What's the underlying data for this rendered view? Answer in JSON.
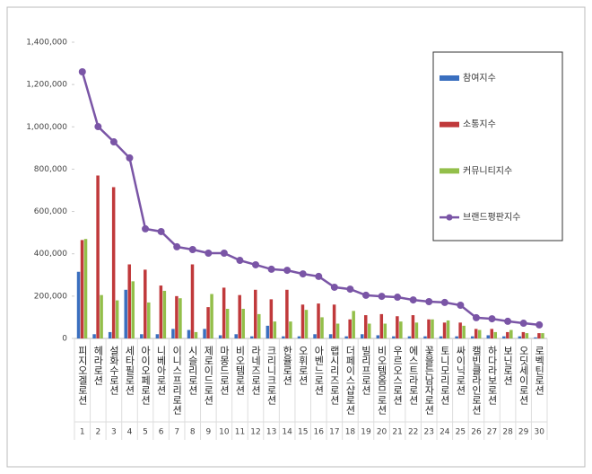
{
  "chart_data": {
    "type": "bar-line",
    "categories": [
      "피지오겔로션",
      "헤라로션",
      "설화수로션",
      "세타필로션",
      "아이오페로션",
      "니베아로션",
      "이니스프리로션",
      "시슬리로션",
      "제로이드로션",
      "마몽드로션",
      "비오템로션",
      "라네즈로션",
      "크리니크로션",
      "한율로션",
      "오휘로션",
      "아벤느로션",
      "랩시리즈로션",
      "더페이스샵로션",
      "빌리프로션",
      "비오템옴므로션",
      "우르오스로션",
      "에스트라로션",
      "꽃을든남자로션",
      "토니모리로션",
      "싸이닉로션",
      "캘빈클라인로션",
      "하다라보로션",
      "보닌로션",
      "오딧세이로션",
      "로벡틴로션"
    ],
    "ranks": [
      1,
      2,
      3,
      4,
      5,
      6,
      7,
      8,
      9,
      10,
      11,
      12,
      13,
      14,
      15,
      16,
      17,
      18,
      19,
      20,
      21,
      22,
      23,
      24,
      25,
      26,
      27,
      28,
      29,
      30
    ],
    "series": [
      {
        "name": "참여지수",
        "color": "#3a6fbf",
        "kind": "bar",
        "values": [
          315000,
          20000,
          30000,
          230000,
          20000,
          20000,
          45000,
          40000,
          45000,
          15000,
          20000,
          10000,
          60000,
          10000,
          10000,
          20000,
          20000,
          10000,
          20000,
          15000,
          10000,
          10000,
          10000,
          10000,
          10000,
          10000,
          15000,
          10000,
          10000,
          5000
        ]
      },
      {
        "name": "소통지수",
        "color": "#c0393b",
        "kind": "bar",
        "values": [
          465000,
          770000,
          715000,
          350000,
          325000,
          250000,
          200000,
          350000,
          148000,
          240000,
          205000,
          230000,
          185000,
          230000,
          160000,
          165000,
          160000,
          90000,
          110000,
          115000,
          105000,
          110000,
          90000,
          75000,
          75000,
          45000,
          45000,
          30000,
          30000,
          25000
        ]
      },
      {
        "name": "커뮤니티지수",
        "color": "#93bf4a",
        "kind": "bar",
        "values": [
          470000,
          205000,
          180000,
          270000,
          170000,
          225000,
          190000,
          30000,
          210000,
          140000,
          140000,
          115000,
          80000,
          80000,
          135000,
          100000,
          70000,
          130000,
          70000,
          70000,
          80000,
          75000,
          90000,
          85000,
          60000,
          40000,
          30000,
          40000,
          25000,
          25000
        ]
      },
      {
        "name": "브랜드평판지수",
        "color": "#7a55a6",
        "kind": "line",
        "values": [
          1260000,
          1001000,
          929000,
          853000,
          518000,
          505000,
          433000,
          420000,
          403000,
          403000,
          369000,
          348000,
          327000,
          322000,
          305000,
          293000,
          242000,
          233000,
          204000,
          199000,
          195000,
          182000,
          174000,
          170000,
          157000,
          98000,
          93000,
          81000,
          72000,
          64000
        ]
      }
    ],
    "ylim": [
      0,
      1400000
    ],
    "yticks": [
      0,
      {
        "value": 200000,
        "label": "200,000"
      },
      {
        "value": 400000,
        "label": "400,000"
      },
      {
        "value": 600000,
        "label": "600,000"
      },
      {
        "value": 800000,
        "label": "800,000"
      },
      {
        "value": 1000000,
        "label": "1,000,000"
      },
      {
        "value": 1200000,
        "label": "1,200,000"
      },
      {
        "value": 1400000,
        "label": "1,400,000"
      }
    ],
    "legend": "right"
  }
}
